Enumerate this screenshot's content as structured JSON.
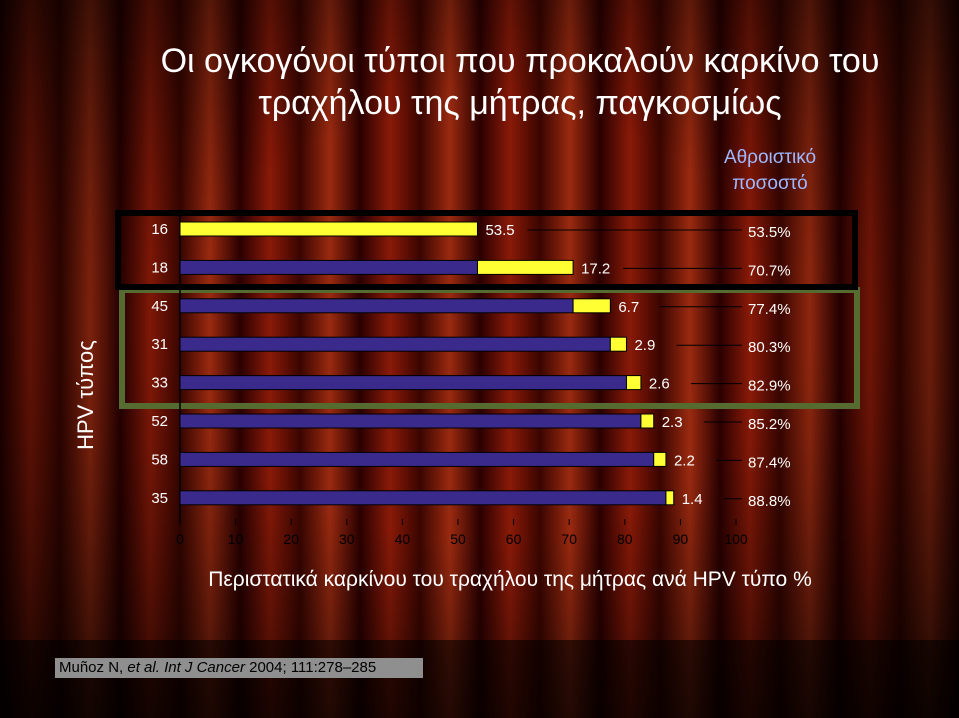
{
  "title": "Οι ογκογόνοι τύποι που προκαλούν  καρκίνο του τραχήλου της μήτρας, παγκοσμίως",
  "cumulative_header": "Αθροιστικό ποσοστό",
  "citation": {
    "authors": "Muñoz N,",
    "etal": "et al.",
    "journal": "Int J Cancer",
    "ref": "2004; 111:278–285"
  },
  "colors": {
    "prev_bar": "#3a2a8c",
    "hpv_bar": "#ffff33",
    "highlight_box_1": "#000000",
    "highlight_box_2": "#556b2f"
  },
  "chart_data": {
    "type": "bar",
    "orientation": "horizontal",
    "stacked": true,
    "categories": [
      "16",
      "18",
      "45",
      "31",
      "33",
      "52",
      "58",
      "35"
    ],
    "series": [
      {
        "values": [
          0,
          53.5,
          70.7,
          77.4,
          80.3,
          82.9,
          85.2,
          87.4
        ]
      },
      {
        "values": [
          53.5,
          17.2,
          6.7,
          2.9,
          2.6,
          2.3,
          2.2,
          1.4
        ]
      }
    ],
    "value_labels": [
      "53.5",
      "17.2",
      "6.7",
      "2.9",
      "2.6",
      "2.3",
      "2.2",
      "1.4"
    ],
    "cumulative": [
      "53.5%",
      "70.7%",
      "77.4%",
      "80.3%",
      "82.9%",
      "85.2%",
      "87.4%",
      "88.8%"
    ],
    "xlim": [
      0,
      100
    ],
    "xticks": [
      "0",
      "10",
      "20",
      "30",
      "40",
      "50",
      "60",
      "70",
      "80",
      "90",
      "100"
    ],
    "xlabel": "Περιστατικά καρκίνου του τραχήλου της μήτρας ανά HPV τύπο %",
    "ylabel": "HPV τύπος"
  }
}
